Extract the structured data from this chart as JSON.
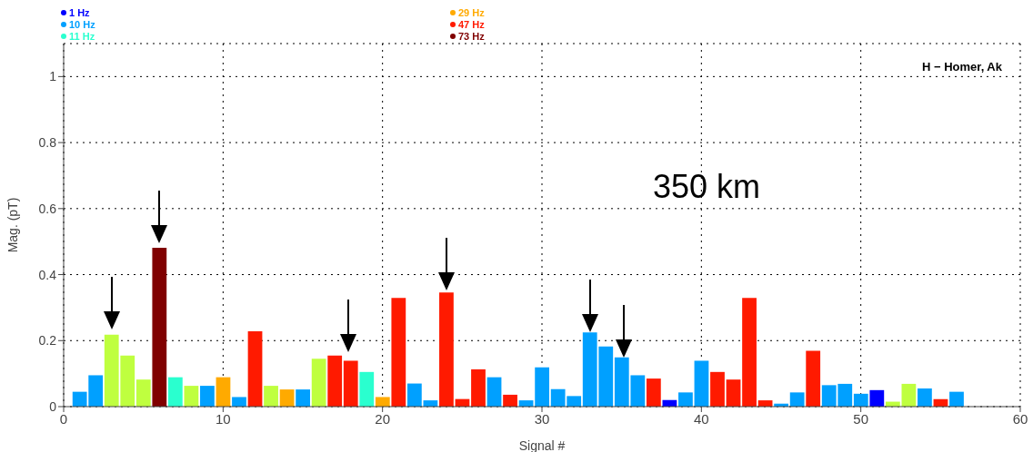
{
  "chart_data": {
    "type": "bar",
    "xlabel": "Signal #",
    "ylabel": "Mag. (pT)",
    "annotations": [
      "H − Homer, Ak",
      "350 km"
    ],
    "x": [
      1,
      2,
      3,
      4,
      5,
      6,
      7,
      8,
      9,
      10,
      11,
      12,
      13,
      14,
      15,
      16,
      17,
      18,
      19,
      20,
      21,
      22,
      23,
      24,
      25,
      26,
      27,
      28,
      29,
      30,
      31,
      32,
      33,
      34,
      35,
      36,
      37,
      38,
      39,
      40,
      41,
      42,
      43,
      44,
      45,
      46,
      47,
      48,
      49,
      50,
      51,
      52,
      53,
      54,
      55,
      56
    ],
    "series": [
      {
        "name": "1 Hz",
        "color": "#0000ff",
        "values": [
          null,
          null,
          null,
          null,
          null,
          null,
          null,
          null,
          null,
          null,
          null,
          null,
          null,
          null,
          null,
          null,
          null,
          null,
          null,
          null,
          null,
          null,
          null,
          null,
          null,
          null,
          null,
          null,
          null,
          null,
          null,
          null,
          null,
          null,
          null,
          null,
          null,
          0.02,
          null,
          null,
          null,
          null,
          null,
          null,
          null,
          null,
          null,
          null,
          null,
          null,
          0.05,
          null,
          null,
          null,
          null,
          null
        ]
      },
      {
        "name": "10 Hz",
        "color": "#00a0ff",
        "values": [
          0.045,
          0.095,
          null,
          null,
          null,
          null,
          null,
          null,
          0.063,
          null,
          0.029,
          null,
          null,
          null,
          0.052,
          null,
          null,
          null,
          null,
          null,
          null,
          0.07,
          0.019,
          null,
          null,
          null,
          0.089,
          null,
          0.019,
          0.119,
          0.053,
          0.032,
          0.225,
          0.182,
          0.149,
          0.095,
          null,
          null,
          0.043,
          0.139,
          null,
          null,
          null,
          null,
          0.009,
          0.043,
          null,
          0.065,
          0.069,
          0.039,
          null,
          null,
          null,
          0.055,
          null,
          0.045
        ]
      },
      {
        "name": "11 Hz",
        "color": "#2affcf",
        "values": [
          null,
          null,
          null,
          null,
          null,
          null,
          0.089,
          null,
          null,
          null,
          null,
          null,
          null,
          null,
          null,
          null,
          null,
          null,
          0.105,
          null,
          null,
          null,
          null,
          null,
          null,
          null,
          null,
          null,
          null,
          null,
          null,
          null,
          null,
          null,
          null,
          null,
          null,
          null,
          null,
          null,
          null,
          null,
          null,
          null,
          null,
          null,
          null,
          null,
          null,
          null,
          null,
          null,
          null,
          null,
          null,
          null
        ]
      },
      {
        "color": "#bfff3f",
        "values": [
          null,
          null,
          0.218,
          0.155,
          0.082,
          null,
          null,
          0.063,
          null,
          null,
          null,
          null,
          0.063,
          null,
          null,
          0.145,
          null,
          null,
          null,
          null,
          null,
          null,
          null,
          null,
          null,
          null,
          null,
          null,
          null,
          null,
          null,
          null,
          null,
          null,
          null,
          null,
          null,
          null,
          null,
          null,
          null,
          null,
          null,
          null,
          null,
          null,
          null,
          null,
          null,
          null,
          null,
          0.015,
          0.069,
          null,
          null,
          null
        ]
      },
      {
        "name": "29 Hz",
        "color": "#ffaa00",
        "values": [
          null,
          null,
          null,
          null,
          null,
          null,
          null,
          null,
          null,
          0.089,
          null,
          null,
          null,
          0.052,
          null,
          null,
          null,
          null,
          null,
          0.029,
          null,
          null,
          null,
          null,
          null,
          null,
          null,
          null,
          null,
          null,
          null,
          null,
          null,
          null,
          null,
          null,
          null,
          null,
          null,
          null,
          null,
          null,
          null,
          null,
          null,
          null,
          null,
          null,
          null,
          null,
          null,
          null,
          null,
          null,
          null,
          null
        ]
      },
      {
        "name": "47 Hz",
        "color": "#ff1a00",
        "values": [
          null,
          null,
          null,
          null,
          null,
          null,
          null,
          null,
          null,
          null,
          null,
          0.228,
          null,
          null,
          null,
          null,
          0.155,
          0.139,
          null,
          null,
          0.329,
          null,
          null,
          0.346,
          0.023,
          0.113,
          null,
          0.036,
          null,
          null,
          null,
          null,
          null,
          null,
          null,
          null,
          0.085,
          null,
          null,
          null,
          0.105,
          0.082,
          0.329,
          0.019,
          null,
          null,
          0.169,
          null,
          null,
          null,
          null,
          null,
          null,
          null,
          0.023,
          null
        ]
      },
      {
        "name": "73 Hz",
        "color": "#800000",
        "values": [
          null,
          null,
          null,
          null,
          null,
          0.481,
          null,
          null,
          null,
          null,
          null,
          null,
          null,
          null,
          null,
          null,
          null,
          null,
          null,
          null,
          null,
          null,
          null,
          null,
          null,
          null,
          null,
          null,
          null,
          null,
          null,
          null,
          null,
          null,
          null,
          null,
          null,
          null,
          null,
          null,
          null,
          null,
          null,
          null,
          null,
          null,
          null,
          null,
          null,
          null,
          null,
          null,
          null,
          null,
          null,
          null
        ]
      }
    ],
    "xlim": [
      0,
      60
    ],
    "xticks": [
      0,
      10,
      20,
      30,
      40,
      50,
      60
    ],
    "ylim": [
      0,
      1.1
    ],
    "yticks": [
      0,
      0.2,
      0.4,
      0.6,
      0.8,
      1
    ],
    "grid": true,
    "legend": "top"
  }
}
